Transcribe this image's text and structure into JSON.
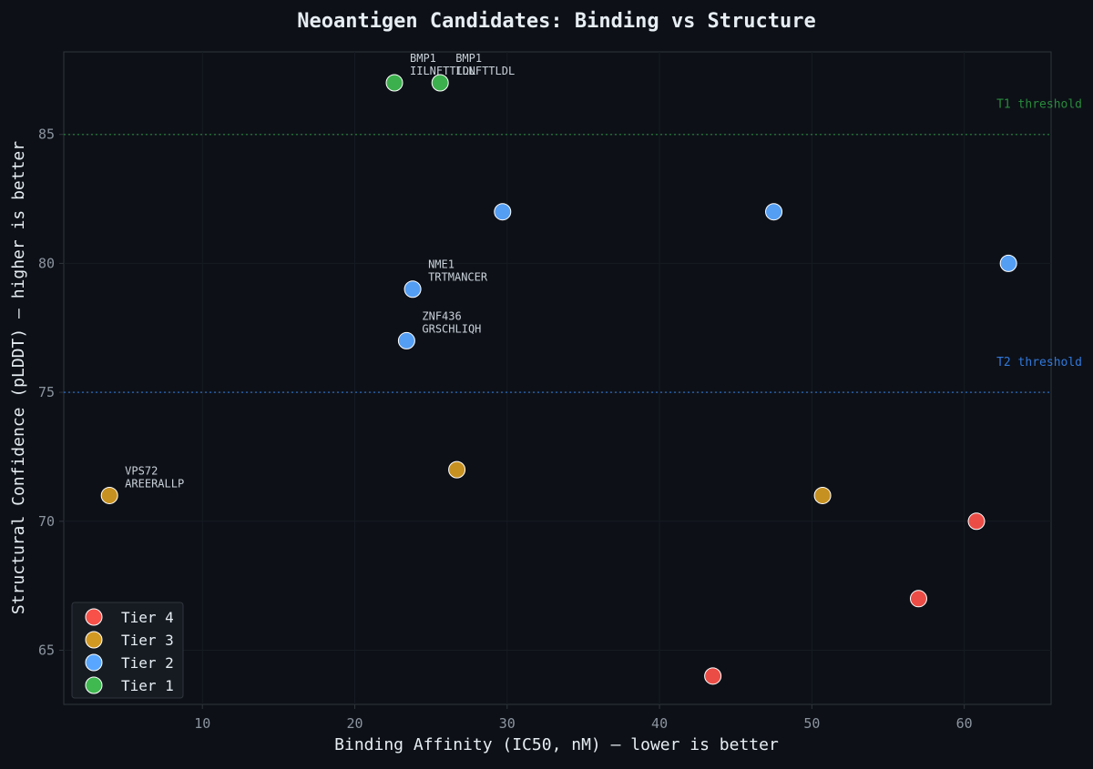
{
  "chart_data": {
    "type": "scatter",
    "title": "Neoantigen Candidates: Binding vs Structure",
    "xlabel": "Binding Affinity (IC50, nM) — lower is better",
    "ylabel": "Structural Confidence (pLDDT) — higher is better",
    "xlim": [
      0.9,
      65.7
    ],
    "ylim": [
      62.9,
      88.2
    ],
    "xticks": [
      10,
      20,
      30,
      40,
      50,
      60
    ],
    "yticks": [
      65,
      70,
      75,
      80,
      85
    ],
    "grid": true,
    "legend_position": "bottom-left",
    "thresholds": [
      {
        "label": "T1 threshold",
        "y": 85,
        "color": "#2ea043"
      },
      {
        "label": "T2 threshold",
        "y": 75,
        "color": "#388bfd"
      }
    ],
    "series": [
      {
        "name": "Tier 4",
        "color": "#f85149",
        "points": [
          {
            "x": 43.5,
            "y": 64
          },
          {
            "x": 57.0,
            "y": 67
          },
          {
            "x": 60.8,
            "y": 70
          }
        ]
      },
      {
        "name": "Tier 3",
        "color": "#d29922",
        "points": [
          {
            "x": 3.9,
            "y": 71,
            "gene": "VPS72",
            "peptide": "AREERALLP"
          },
          {
            "x": 26.7,
            "y": 72
          },
          {
            "x": 50.7,
            "y": 71
          }
        ]
      },
      {
        "name": "Tier 2",
        "color": "#58a6ff",
        "points": [
          {
            "x": 23.4,
            "y": 77,
            "gene": "ZNF436",
            "peptide": "GRSCHLIQH"
          },
          {
            "x": 23.8,
            "y": 79,
            "gene": "NME1",
            "peptide": "TRTMANCER"
          },
          {
            "x": 29.7,
            "y": 82
          },
          {
            "x": 47.5,
            "y": 82
          },
          {
            "x": 62.9,
            "y": 80
          }
        ]
      },
      {
        "name": "Tier 1",
        "color": "#3fb950",
        "points": [
          {
            "x": 22.6,
            "y": 87,
            "gene": "BMP1",
            "peptide": "IILNFTTLDL"
          },
          {
            "x": 25.6,
            "y": 87,
            "gene": "BMP1",
            "peptide": "ILNFTTLDL"
          }
        ]
      }
    ]
  }
}
